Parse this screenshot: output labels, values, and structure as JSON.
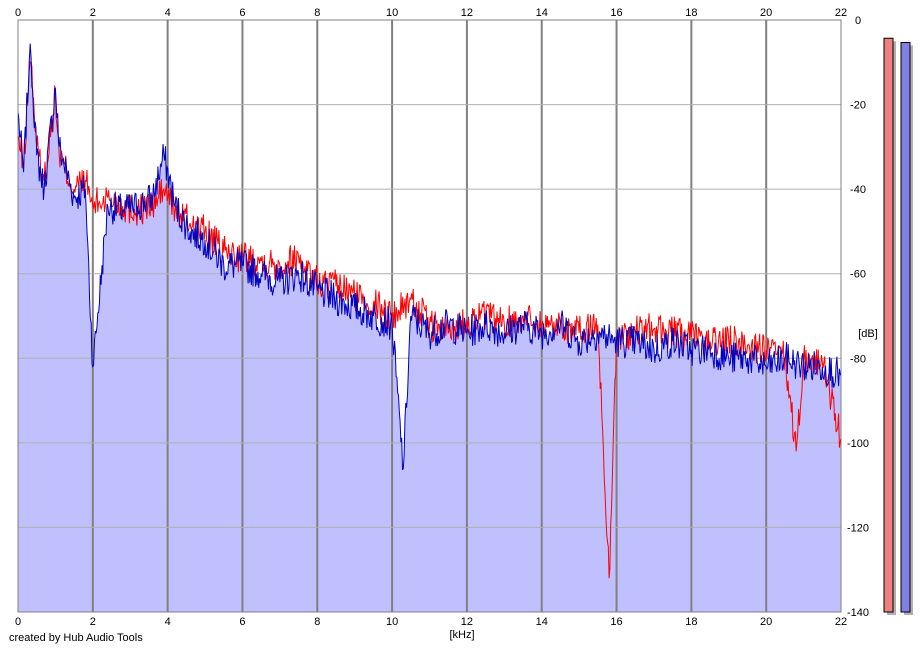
{
  "chart_data": {
    "type": "line",
    "title": "",
    "xlabel": "[kHz]",
    "ylabel": "[dB]",
    "xlim": [
      0,
      22
    ],
    "ylim": [
      -140,
      0
    ],
    "x_ticks": [
      "0",
      "2",
      "4",
      "6",
      "8",
      "10",
      "12",
      "14",
      "16",
      "18",
      "20",
      "22"
    ],
    "y_ticks": [
      "0",
      "-20",
      "-40",
      "-60",
      "-80",
      "-100",
      "-120",
      "-140"
    ],
    "grid": true,
    "legend": "none",
    "fill_color": "#c0c0ff",
    "series": [
      {
        "color": "#ff0000",
        "x": [
          0,
          0.15,
          0.3,
          0.35,
          0.5,
          0.7,
          1.0,
          1.1,
          1.5,
          1.8,
          2.0,
          2.4,
          2.8,
          3.2,
          3.6,
          3.9,
          4.2,
          4.6,
          5.0,
          5.5,
          6.0,
          6.5,
          7.0,
          7.5,
          8.0,
          8.5,
          9.0,
          9.5,
          10.0,
          10.5,
          11.0,
          11.5,
          12.0,
          12.5,
          13.0,
          13.5,
          14.0,
          14.5,
          15.0,
          15.5,
          15.8,
          16.0,
          16.5,
          17.0,
          17.5,
          18.0,
          18.5,
          19.0,
          19.5,
          20.0,
          20.5,
          20.8,
          21.0,
          21.5,
          22.0
        ],
        "y": [
          -28,
          -35,
          -12,
          -10,
          -30,
          -38,
          -18,
          -32,
          -40,
          -38,
          -44,
          -42,
          -44,
          -45,
          -44,
          -40,
          -45,
          -48,
          -50,
          -55,
          -56,
          -57,
          -58,
          -56,
          -62,
          -63,
          -65,
          -67,
          -70,
          -66,
          -72,
          -74,
          -71,
          -70,
          -72,
          -70,
          -72,
          -72,
          -74,
          -72,
          -132,
          -75,
          -74,
          -73,
          -74,
          -75,
          -76,
          -76,
          -77,
          -78,
          -80,
          -102,
          -80,
          -81,
          -99
        ]
      },
      {
        "color": "#0000c0",
        "x": [
          0,
          0.15,
          0.3,
          0.35,
          0.5,
          0.7,
          1.0,
          1.1,
          1.5,
          1.8,
          2.0,
          2.4,
          2.8,
          3.2,
          3.6,
          3.9,
          4.2,
          4.6,
          5.0,
          5.5,
          6.0,
          6.5,
          7.0,
          7.5,
          8.0,
          8.5,
          9.0,
          9.5,
          10.0,
          10.3,
          10.5,
          11.0,
          11.5,
          12.0,
          12.5,
          13.0,
          13.5,
          14.0,
          14.5,
          15.0,
          15.5,
          16.0,
          16.5,
          17.0,
          17.5,
          18.0,
          18.5,
          19.0,
          19.5,
          20.0,
          20.5,
          21.0,
          21.5,
          22.0
        ],
        "y": [
          -22,
          -36,
          -10,
          -9,
          -32,
          -40,
          -16,
          -30,
          -42,
          -40,
          -82,
          -44,
          -45,
          -44,
          -42,
          -32,
          -44,
          -50,
          -52,
          -58,
          -58,
          -60,
          -62,
          -60,
          -64,
          -66,
          -68,
          -70,
          -72,
          -106,
          -70,
          -74,
          -72,
          -74,
          -72,
          -74,
          -72,
          -74,
          -72,
          -76,
          -74,
          -76,
          -76,
          -78,
          -76,
          -78,
          -78,
          -80,
          -80,
          -82,
          -80,
          -82,
          -82,
          -84
        ]
      }
    ],
    "level_meters": [
      {
        "color": "#f08080",
        "level_db": -1
      },
      {
        "color": "#8080e0",
        "level_db": -2
      }
    ]
  },
  "footer": {
    "credit_text": "created by Hub Audio Tools"
  }
}
